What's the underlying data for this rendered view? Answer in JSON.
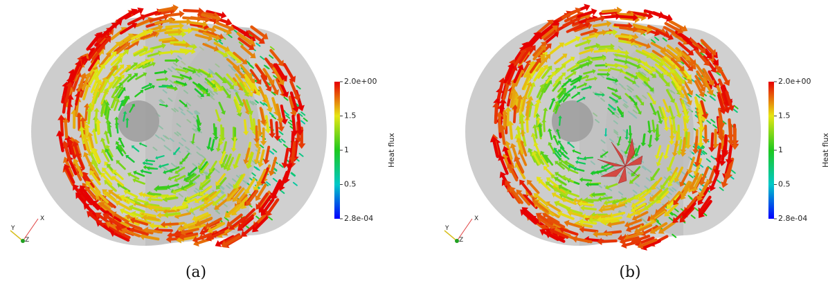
{
  "panels": [
    {
      "caption": "(a)",
      "axes": {
        "x": "X",
        "y": "Y",
        "z": "Z"
      },
      "colorbar": {
        "title": "Heat flux",
        "ticks": [
          {
            "value": 2,
            "label": "2.0e+00"
          },
          1.5,
          1,
          0.5,
          {
            "value": 0.00028,
            "label": "2.8e-04"
          }
        ]
      }
    },
    {
      "caption": "(b)",
      "axes": {
        "x": "X",
        "y": "Y",
        "z": "Z"
      },
      "colorbar": {
        "title": "Heat flux",
        "ticks": [
          {
            "value": 2,
            "label": "2.0e+00"
          },
          1.5,
          1,
          0.5,
          {
            "value": 0.00028,
            "label": "2.8e-04"
          }
        ]
      }
    }
  ]
}
